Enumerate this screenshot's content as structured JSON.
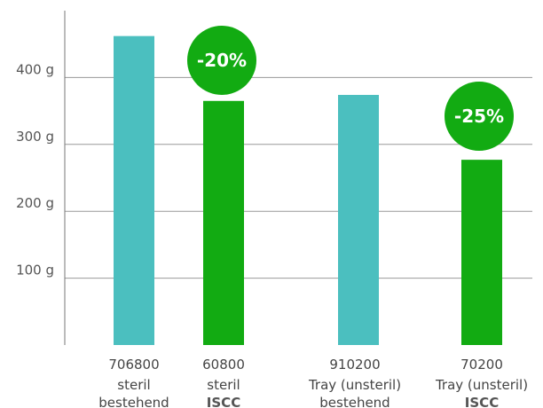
{
  "chart_data": {
    "type": "bar",
    "ylim": [
      0,
      500
    ],
    "grid": true,
    "yticks": [
      {
        "value": 100,
        "label": "100 g"
      },
      {
        "value": 200,
        "label": "200 g"
      },
      {
        "value": 300,
        "label": "300 g"
      },
      {
        "value": 400,
        "label": "400 g"
      }
    ],
    "categories": [
      {
        "lines": [
          "706800",
          "steril",
          "bestehend"
        ],
        "bold_last": false
      },
      {
        "lines": [
          "60800",
          "steril",
          "ISCC"
        ],
        "bold_last": true
      },
      {
        "lines": [
          "910200",
          "Tray (unsteril)",
          "bestehend"
        ],
        "bold_last": false
      },
      {
        "lines": [
          "70200",
          "Tray (unsteril)",
          "ISCC"
        ],
        "bold_last": true
      }
    ],
    "values": [
      462,
      365,
      374,
      277
    ],
    "bar_colors": [
      "#4bbfbf",
      "#12ab12",
      "#4bbfbf",
      "#12ab12"
    ],
    "badges": [
      {
        "bar_index": 1,
        "label": "-20%"
      },
      {
        "bar_index": 3,
        "label": "-25%"
      }
    ],
    "colors": {
      "teal": "#4bbfbf",
      "green": "#12ab12",
      "grid": "#999999",
      "axis": "#777777"
    }
  }
}
